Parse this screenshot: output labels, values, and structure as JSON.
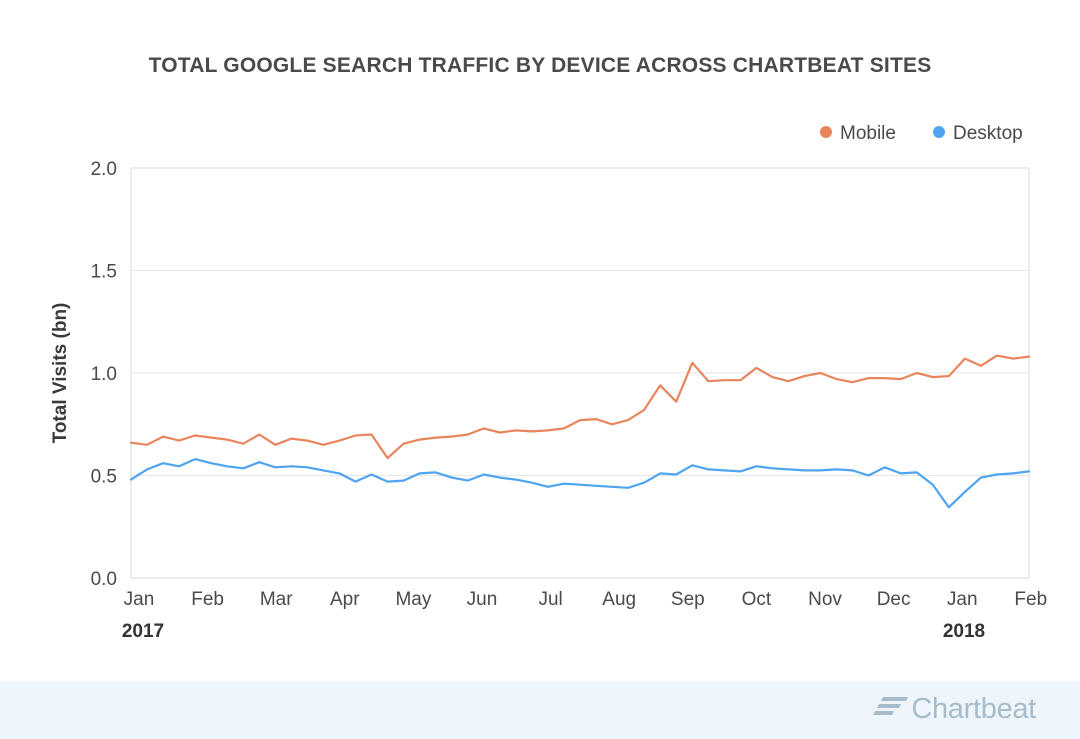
{
  "chart_data": {
    "type": "line",
    "title": "TOTAL GOOGLE SEARCH TRAFFIC BY DEVICE ACROSS CHARTBEAT SITES",
    "xlabel": "",
    "ylabel": "Total Visits (bn)",
    "ylim": [
      0.0,
      2.0
    ],
    "y_ticks": [
      "0.0",
      "0.5",
      "1.0",
      "1.5",
      "2.0"
    ],
    "x_ticks": [
      "Jan",
      "Feb",
      "Mar",
      "Apr",
      "May",
      "Jun",
      "Jul",
      "Aug",
      "Sep",
      "Oct",
      "Nov",
      "Dec",
      "Jan",
      "Feb"
    ],
    "year_labels": [
      "2017",
      "2018"
    ],
    "grid": true,
    "legend_position": "top-right",
    "series": [
      {
        "name": "Mobile",
        "color": "#e8855c",
        "values": [
          0.66,
          0.65,
          0.69,
          0.67,
          0.695,
          0.685,
          0.675,
          0.655,
          0.7,
          0.65,
          0.68,
          0.67,
          0.65,
          0.67,
          0.695,
          0.7,
          0.585,
          0.655,
          0.675,
          0.685,
          0.69,
          0.7,
          0.73,
          0.71,
          0.72,
          0.715,
          0.72,
          0.73,
          0.77,
          0.775,
          0.75,
          0.77,
          0.82,
          0.94,
          0.86,
          1.05,
          0.96,
          0.965,
          0.965,
          1.025,
          0.98,
          0.96,
          0.985,
          1.0,
          0.97,
          0.955,
          0.975,
          0.975,
          0.97,
          1.0,
          0.98,
          0.985,
          1.07,
          1.035,
          1.085,
          1.07,
          1.08
        ]
      },
      {
        "name": "Desktop",
        "color": "#4ea4f0",
        "values": [
          0.48,
          0.53,
          0.56,
          0.545,
          0.58,
          0.56,
          0.545,
          0.535,
          0.565,
          0.54,
          0.545,
          0.54,
          0.525,
          0.51,
          0.47,
          0.505,
          0.47,
          0.475,
          0.51,
          0.515,
          0.49,
          0.475,
          0.505,
          0.49,
          0.48,
          0.465,
          0.445,
          0.46,
          0.455,
          0.45,
          0.445,
          0.44,
          0.465,
          0.51,
          0.505,
          0.55,
          0.53,
          0.525,
          0.52,
          0.545,
          0.535,
          0.53,
          0.525,
          0.525,
          0.53,
          0.525,
          0.5,
          0.54,
          0.51,
          0.515,
          0.455,
          0.345,
          0.42,
          0.49,
          0.505,
          0.51,
          0.52
        ]
      }
    ]
  },
  "brand": {
    "name": "Chartbeat",
    "color": "#a6bccb",
    "logo_icon": "chartbeat-wing-icon"
  },
  "colors": {
    "footer_background": "#eef6fb",
    "gridline": "#e6e6e6",
    "plot_border": "#d9d9d9"
  }
}
